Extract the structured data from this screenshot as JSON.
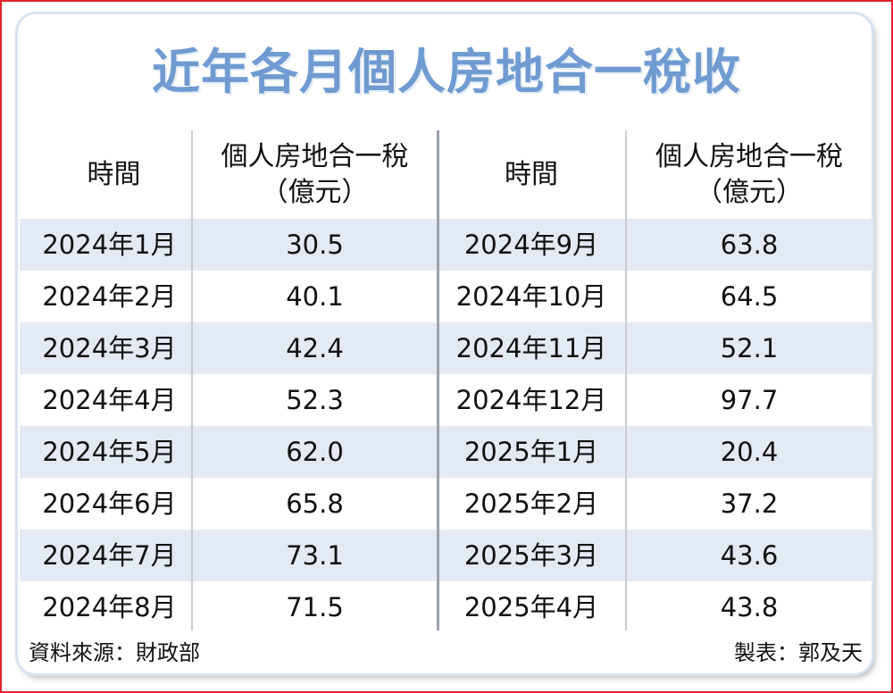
{
  "chart_data": {
    "type": "table",
    "title": "近年各月個人房地合一稅收",
    "columns": [
      {
        "header_line1": "時間",
        "header_line2": ""
      },
      {
        "header_line1": "個人房地合一稅",
        "header_line2": "（億元）"
      }
    ],
    "rows": [
      {
        "period": "2024年1月",
        "value": "30.5"
      },
      {
        "period": "2024年2月",
        "value": "40.1"
      },
      {
        "period": "2024年3月",
        "value": "42.4"
      },
      {
        "period": "2024年4月",
        "value": "52.3"
      },
      {
        "period": "2024年5月",
        "value": "62.0"
      },
      {
        "period": "2024年6月",
        "value": "65.8"
      },
      {
        "period": "2024年7月",
        "value": "73.1"
      },
      {
        "period": "2024年8月",
        "value": "71.5"
      },
      {
        "period": "2024年9月",
        "value": "63.8"
      },
      {
        "period": "2024年10月",
        "value": "64.5"
      },
      {
        "period": "2024年11月",
        "value": "52.1"
      },
      {
        "period": "2024年12月",
        "value": "97.7"
      },
      {
        "period": "2025年1月",
        "value": "20.4"
      },
      {
        "period": "2025年2月",
        "value": "37.2"
      },
      {
        "period": "2025年3月",
        "value": "43.6"
      },
      {
        "period": "2025年4月",
        "value": "43.8"
      }
    ],
    "source": "資料來源：財政部",
    "credit": "製表：郭及天"
  },
  "colors": {
    "title": "#6f9bd1",
    "stripe": "#e4eaf4",
    "frame": "#e0242b"
  }
}
